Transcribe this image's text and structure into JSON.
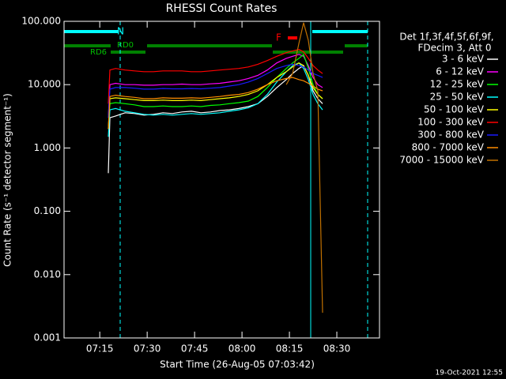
{
  "chart_data": {
    "type": "line",
    "title": "RHESSI Count Rates",
    "xlabel": "Start Time (26-Aug-05 07:03:42)",
    "ylabel": "Count Rate (s⁻¹ detector segment⁻¹)",
    "y_scale": "log",
    "grid": false,
    "legend_title": [
      "Det 1f,3f,4f,5f,6f,9f,",
      "FDecim 3, Att 0"
    ],
    "annotations": [
      "N",
      "RD0",
      "RD6",
      "F"
    ],
    "footer": "19-Oct-2021 12:55",
    "xlim": [
      3.7,
      103.5
    ],
    "xticks": [
      {
        "value": 15,
        "label": "07:15"
      },
      {
        "value": 30,
        "label": "07:30"
      },
      {
        "value": 45,
        "label": "07:45"
      },
      {
        "value": 60,
        "label": "08:00"
      },
      {
        "value": 75,
        "label": "08:15"
      },
      {
        "value": 90,
        "label": "08:30"
      }
    ],
    "ylim": [
      0.001,
      100
    ],
    "yticks": [
      {
        "value": 0.001,
        "label": "0.001"
      },
      {
        "value": 0.01,
        "label": "0.010"
      },
      {
        "value": 0.1,
        "label": "0.100"
      },
      {
        "value": 1,
        "label": "1.000"
      },
      {
        "value": 10,
        "label": "10.000"
      },
      {
        "value": 100,
        "label": "100.000"
      }
    ],
    "x": [
      17.7,
      18.2,
      20,
      23,
      26,
      29,
      32,
      35,
      38,
      41,
      44,
      47,
      50,
      53,
      56,
      59,
      62,
      65,
      68,
      71,
      74,
      76,
      78,
      79.5,
      81,
      82.5,
      84,
      85.5
    ],
    "series": [
      {
        "name": "3 - 6 keV",
        "color": "#ffffff",
        "values": [
          0.4,
          3.0,
          3.2,
          3.6,
          3.5,
          3.3,
          3.4,
          3.6,
          3.5,
          3.7,
          3.8,
          3.6,
          3.7,
          3.9,
          4.0,
          4.2,
          4.5,
          5.0,
          6.5,
          9,
          12,
          15,
          18,
          20,
          14,
          8,
          6,
          5
        ]
      },
      {
        "name": "6 - 12 keV",
        "color": "#ff00ff",
        "values": [
          3,
          10,
          10.5,
          10,
          10,
          9.8,
          9.8,
          10,
          10,
          10.2,
          10,
          10,
          10.3,
          10.5,
          11,
          11.5,
          12.5,
          14,
          17,
          22,
          26,
          28,
          30,
          28,
          20,
          13,
          10,
          9
        ]
      },
      {
        "name": "12 - 25 keV",
        "color": "#00ff00",
        "values": [
          2,
          5,
          5.2,
          5,
          4.8,
          4.5,
          4.5,
          4.6,
          4.5,
          4.5,
          4.6,
          4.5,
          4.7,
          4.8,
          5,
          5.2,
          5.5,
          6.5,
          9,
          13,
          18,
          22,
          26,
          30,
          18,
          10,
          7,
          6
        ]
      },
      {
        "name": "25 - 50 keV",
        "color": "#00ffff",
        "values": [
          1.5,
          4,
          4.2,
          3.8,
          3.6,
          3.4,
          3.3,
          3.4,
          3.3,
          3.4,
          3.5,
          3.4,
          3.5,
          3.6,
          3.8,
          4.0,
          4.3,
          5,
          7,
          11,
          16,
          20,
          22,
          18,
          12,
          7,
          5,
          4
        ]
      },
      {
        "name": "50 - 100 keV",
        "color": "#ffff00",
        "values": [
          2,
          6,
          6.2,
          6,
          5.8,
          5.6,
          5.6,
          5.7,
          5.6,
          5.6,
          5.7,
          5.6,
          5.8,
          6,
          6.2,
          6.5,
          7,
          8,
          10,
          13,
          16,
          19,
          22,
          20,
          14,
          9,
          7,
          6
        ]
      },
      {
        "name": "100 - 300 keV",
        "color": "#ff0000",
        "values": [
          5,
          17,
          18,
          17,
          16.5,
          16,
          16,
          16.5,
          16.5,
          16.5,
          16,
          16,
          16.5,
          17,
          17.5,
          18,
          19,
          21,
          24,
          28,
          32,
          34,
          36,
          33,
          26,
          20,
          17,
          15
        ]
      },
      {
        "name": "300 - 800 keV",
        "color": "#1a1aff",
        "values": [
          3,
          8.5,
          9,
          9,
          8.8,
          8.5,
          8.5,
          8.7,
          8.6,
          8.6,
          8.7,
          8.6,
          8.8,
          9,
          9.5,
          10,
          11,
          12.5,
          15,
          18,
          20,
          21,
          20,
          19,
          17,
          15,
          14,
          13
        ]
      },
      {
        "name": "800 - 7000 keV",
        "color": "#ff8c00",
        "values": [
          2,
          6.5,
          6.8,
          6.5,
          6.3,
          6,
          6,
          6.2,
          6.1,
          6.1,
          6.2,
          6.1,
          6.3,
          6.5,
          6.8,
          7,
          7.5,
          8.5,
          10,
          11.5,
          12.5,
          13,
          12,
          11.5,
          10.5,
          9.5,
          8.5,
          8
        ]
      },
      {
        "name": "7000 - 15000 keV",
        "color": "#c07000",
        "values": [
          null,
          null,
          null,
          null,
          null,
          null,
          null,
          null,
          null,
          null,
          null,
          null,
          null,
          null,
          null,
          null,
          null,
          null,
          null,
          null,
          10,
          15,
          45,
          95,
          50,
          15,
          8,
          0.0025
        ]
      }
    ]
  }
}
